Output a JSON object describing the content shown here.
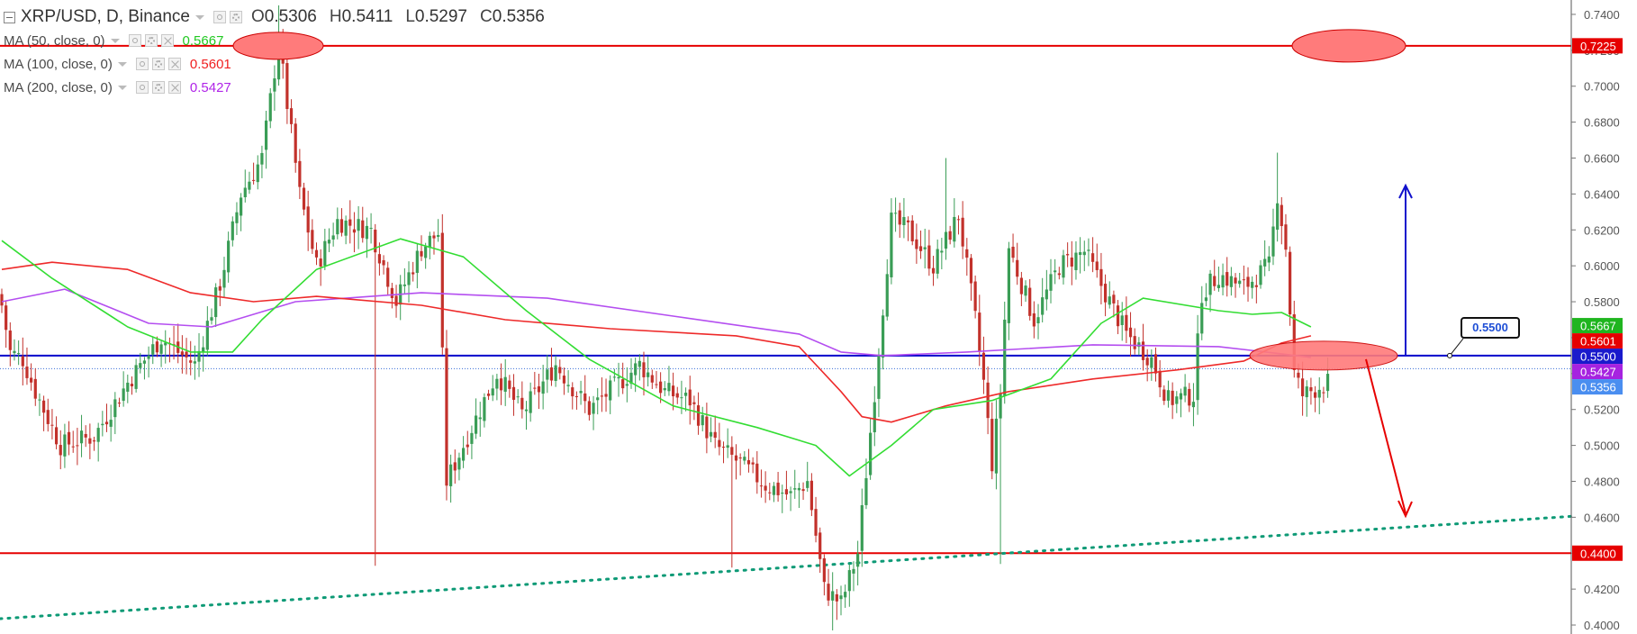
{
  "header": {
    "symbol_title": "XRP/USD, D, Binance",
    "open_label": "O",
    "open": "0.5306",
    "high_label": "H",
    "high": "0.5411",
    "low_label": "L",
    "low": "0.5297",
    "close_label": "C",
    "close": "0.5356"
  },
  "indicators": [
    {
      "label": "MA (50, close, 0)",
      "value": "0.5667",
      "color": "#22c922"
    },
    {
      "label": "MA (100, close, 0)",
      "value": "0.5601",
      "color": "#f02020"
    },
    {
      "label": "MA (200, close, 0)",
      "value": "0.5427",
      "color": "#b024e8"
    }
  ],
  "annotation": {
    "text": "0.5500"
  },
  "colors": {
    "up": "#3a9d56",
    "down": "#c2312b",
    "ma50": "#33dd33",
    "ma100": "#ee2a2a",
    "ma200": "#b44ef0",
    "level": "#e60000",
    "support": "#0000cc",
    "trend": "#0e9a76",
    "ellipse_fill": "#ff7b7b",
    "ellipse_stroke": "#cc0000",
    "arrow_up": "#1010cc",
    "arrow_down": "#e60000"
  },
  "chart_data": {
    "type": "candlestick",
    "ylim": [
      0.395,
      0.748
    ],
    "y_ticks": [
      "0.7400",
      "0.7200",
      "0.7000",
      "0.6800",
      "0.6600",
      "0.6400",
      "0.6200",
      "0.6000",
      "0.5800",
      "0.5600",
      "0.5400",
      "0.5200",
      "0.5000",
      "0.4800",
      "0.4600",
      "0.4400",
      "0.4200",
      "0.4000"
    ],
    "price_labels": [
      {
        "text": "0.7225",
        "value": 0.7225,
        "bg": "#e60000"
      },
      {
        "text": "0.5667",
        "value": 0.5667,
        "bg": "#1fb51f"
      },
      {
        "text": "0.5601",
        "value": 0.5601,
        "bg": "#e60000"
      },
      {
        "text": "0.5500",
        "value": 0.55,
        "bg": "#1a1acc"
      },
      {
        "text": "0.5427",
        "value": 0.5427,
        "bg": "#a623e0"
      },
      {
        "text": "0.5356",
        "value": 0.5356,
        "bg": "#4a8ef0"
      },
      {
        "text": "0.4400",
        "value": 0.44,
        "bg": "#e60000"
      }
    ],
    "horizontal_levels": [
      0.7225,
      0.44
    ],
    "support_level": 0.55,
    "dotted_price_line": 0.5427,
    "trendline": {
      "start": 0.4035,
      "end": 0.4605
    },
    "anchors": [
      {
        "i": 0,
        "c": 0.578
      },
      {
        "i": 2,
        "c": 0.552
      },
      {
        "i": 5,
        "c": 0.548
      },
      {
        "i": 8,
        "c": 0.53
      },
      {
        "i": 14,
        "c": 0.5
      },
      {
        "i": 22,
        "c": 0.505
      },
      {
        "i": 30,
        "c": 0.535
      },
      {
        "i": 38,
        "c": 0.56
      },
      {
        "i": 42,
        "c": 0.552
      },
      {
        "i": 46,
        "c": 0.545
      },
      {
        "i": 52,
        "c": 0.59
      },
      {
        "i": 57,
        "c": 0.64
      },
      {
        "i": 62,
        "c": 0.66
      },
      {
        "i": 66,
        "c": 0.725
      },
      {
        "i": 68,
        "c": 0.69
      },
      {
        "i": 71,
        "c": 0.64
      },
      {
        "i": 75,
        "c": 0.6
      },
      {
        "i": 80,
        "c": 0.625
      },
      {
        "i": 88,
        "c": 0.62
      },
      {
        "i": 94,
        "c": 0.58
      },
      {
        "i": 100,
        "c": 0.61
      },
      {
        "i": 104,
        "c": 0.618
      },
      {
        "i": 106,
        "c": 0.48
      },
      {
        "i": 110,
        "c": 0.5
      },
      {
        "i": 118,
        "c": 0.54
      },
      {
        "i": 124,
        "c": 0.518
      },
      {
        "i": 132,
        "c": 0.545
      },
      {
        "i": 140,
        "c": 0.52
      },
      {
        "i": 152,
        "c": 0.545
      },
      {
        "i": 158,
        "c": 0.53
      },
      {
        "i": 164,
        "c": 0.525
      },
      {
        "i": 170,
        "c": 0.5
      },
      {
        "i": 176,
        "c": 0.49
      },
      {
        "i": 182,
        "c": 0.478
      },
      {
        "i": 188,
        "c": 0.472
      },
      {
        "i": 192,
        "c": 0.48
      },
      {
        "i": 196,
        "c": 0.42
      },
      {
        "i": 200,
        "c": 0.412
      },
      {
        "i": 204,
        "c": 0.44
      },
      {
        "i": 208,
        "c": 0.53
      },
      {
        "i": 212,
        "c": 0.625
      },
      {
        "i": 216,
        "c": 0.62
      },
      {
        "i": 222,
        "c": 0.6
      },
      {
        "i": 228,
        "c": 0.628
      },
      {
        "i": 232,
        "c": 0.57
      },
      {
        "i": 234,
        "c": 0.535
      },
      {
        "i": 236,
        "c": 0.49
      },
      {
        "i": 238,
        "c": 0.53
      },
      {
        "i": 240,
        "c": 0.61
      },
      {
        "i": 246,
        "c": 0.57
      },
      {
        "i": 252,
        "c": 0.6
      },
      {
        "i": 258,
        "c": 0.608
      },
      {
        "i": 264,
        "c": 0.58
      },
      {
        "i": 268,
        "c": 0.562
      },
      {
        "i": 274,
        "c": 0.548
      },
      {
        "i": 278,
        "c": 0.525
      },
      {
        "i": 284,
        "c": 0.528
      },
      {
        "i": 286,
        "c": 0.585
      },
      {
        "i": 290,
        "c": 0.595
      },
      {
        "i": 296,
        "c": 0.588
      },
      {
        "i": 302,
        "c": 0.6
      },
      {
        "i": 304,
        "c": 0.64
      },
      {
        "i": 306,
        "c": 0.61
      },
      {
        "i": 308,
        "c": 0.54
      },
      {
        "i": 310,
        "c": 0.528
      },
      {
        "i": 316,
        "c": 0.535
      }
    ],
    "ma50": [
      [
        0,
        0.614
      ],
      [
        12,
        0.593
      ],
      [
        30,
        0.566
      ],
      [
        45,
        0.552
      ],
      [
        55,
        0.552
      ],
      [
        62,
        0.57
      ],
      [
        75,
        0.598
      ],
      [
        95,
        0.615
      ],
      [
        110,
        0.605
      ],
      [
        125,
        0.575
      ],
      [
        140,
        0.548
      ],
      [
        160,
        0.522
      ],
      [
        180,
        0.51
      ],
      [
        194,
        0.5
      ],
      [
        202,
        0.483
      ],
      [
        212,
        0.5
      ],
      [
        222,
        0.52
      ],
      [
        236,
        0.525
      ],
      [
        250,
        0.537
      ],
      [
        262,
        0.568
      ],
      [
        272,
        0.582
      ],
      [
        290,
        0.575
      ],
      [
        298,
        0.573
      ],
      [
        305,
        0.574
      ],
      [
        312,
        0.566
      ]
    ],
    "ma100": [
      [
        0,
        0.598
      ],
      [
        12,
        0.602
      ],
      [
        30,
        0.598
      ],
      [
        45,
        0.585
      ],
      [
        60,
        0.58
      ],
      [
        75,
        0.583
      ],
      [
        100,
        0.578
      ],
      [
        120,
        0.57
      ],
      [
        145,
        0.565
      ],
      [
        175,
        0.561
      ],
      [
        190,
        0.555
      ],
      [
        200,
        0.53
      ],
      [
        205,
        0.516
      ],
      [
        212,
        0.513
      ],
      [
        225,
        0.522
      ],
      [
        240,
        0.53
      ],
      [
        260,
        0.537
      ],
      [
        280,
        0.542
      ],
      [
        296,
        0.547
      ],
      [
        305,
        0.557
      ],
      [
        312,
        0.561
      ]
    ],
    "ma200": [
      [
        0,
        0.58
      ],
      [
        15,
        0.587
      ],
      [
        35,
        0.568
      ],
      [
        50,
        0.566
      ],
      [
        70,
        0.58
      ],
      [
        100,
        0.585
      ],
      [
        130,
        0.582
      ],
      [
        160,
        0.572
      ],
      [
        190,
        0.562
      ],
      [
        200,
        0.552
      ],
      [
        210,
        0.55
      ],
      [
        230,
        0.552
      ],
      [
        260,
        0.556
      ],
      [
        290,
        0.555
      ],
      [
        305,
        0.551
      ],
      [
        312,
        0.549
      ]
    ]
  }
}
